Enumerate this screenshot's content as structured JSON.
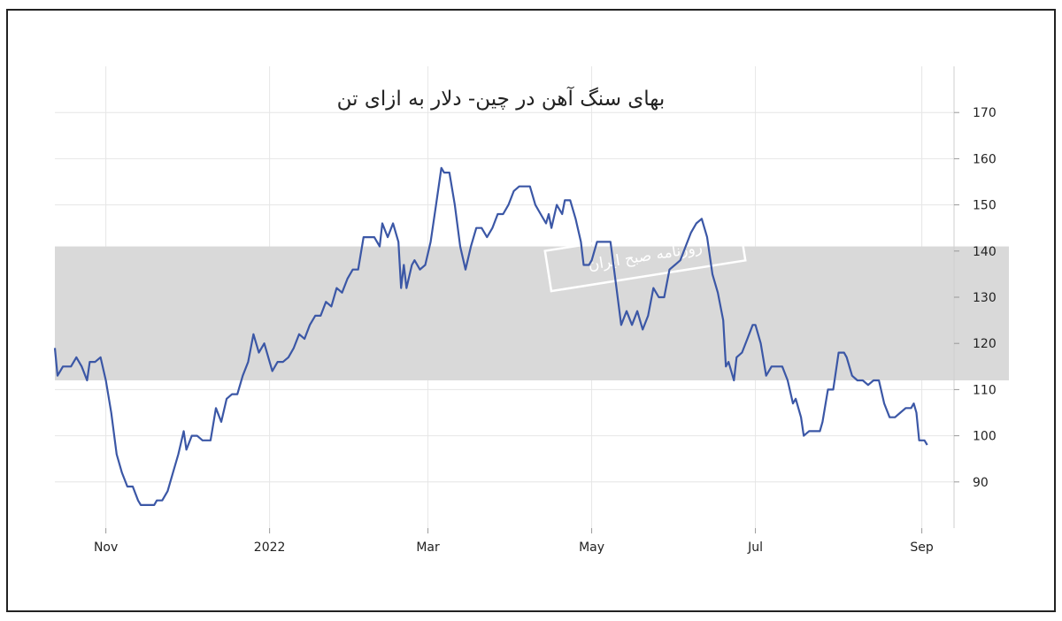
{
  "chart_data": {
    "type": "line",
    "title": "بهای سنگ آهن در چین- دلار به ازای تن",
    "xlabel": "",
    "ylabel": "",
    "ylim": [
      80,
      180
    ],
    "y_ticks": [
      90,
      100,
      110,
      120,
      130,
      140,
      150,
      160,
      170
    ],
    "x_ticks": [
      {
        "label": "Nov",
        "date": "2021-11-01"
      },
      {
        "label": "2022",
        "date": "2022-01-01"
      },
      {
        "label": "Mar",
        "date": "2022-03-01"
      },
      {
        "label": "May",
        "date": "2022-05-01"
      },
      {
        "label": "Jul",
        "date": "2022-07-01"
      },
      {
        "label": "Sep",
        "date": "2022-09-01"
      }
    ],
    "grid": true,
    "series": [
      {
        "color": "#3b57a6",
        "points": [
          [
            "2021-10-13",
            119
          ],
          [
            "2021-10-14",
            113
          ],
          [
            "2021-10-16",
            115
          ],
          [
            "2021-10-19",
            115
          ],
          [
            "2021-10-21",
            117
          ],
          [
            "2021-10-23",
            115
          ],
          [
            "2021-10-25",
            112
          ],
          [
            "2021-10-26",
            116
          ],
          [
            "2021-10-28",
            116
          ],
          [
            "2021-10-30",
            117
          ],
          [
            "2021-11-01",
            112
          ],
          [
            "2021-11-03",
            105
          ],
          [
            "2021-11-05",
            96
          ],
          [
            "2021-11-07",
            92
          ],
          [
            "2021-11-09",
            89
          ],
          [
            "2021-11-11",
            89
          ],
          [
            "2021-11-13",
            86
          ],
          [
            "2021-11-14",
            85
          ],
          [
            "2021-11-16",
            85
          ],
          [
            "2021-11-19",
            85
          ],
          [
            "2021-11-20",
            86
          ],
          [
            "2021-11-22",
            86
          ],
          [
            "2021-11-24",
            88
          ],
          [
            "2021-11-26",
            92
          ],
          [
            "2021-11-28",
            96
          ],
          [
            "2021-11-30",
            101
          ],
          [
            "2021-12-01",
            97
          ],
          [
            "2021-12-03",
            100
          ],
          [
            "2021-12-05",
            100
          ],
          [
            "2021-12-07",
            99
          ],
          [
            "2021-12-10",
            99
          ],
          [
            "2021-12-12",
            106
          ],
          [
            "2021-12-14",
            103
          ],
          [
            "2021-12-16",
            108
          ],
          [
            "2021-12-18",
            109
          ],
          [
            "2021-12-20",
            109
          ],
          [
            "2021-12-22",
            113
          ],
          [
            "2021-12-24",
            116
          ],
          [
            "2021-12-26",
            122
          ],
          [
            "2021-12-28",
            118
          ],
          [
            "2021-12-30",
            120
          ],
          [
            "2022-01-02",
            114
          ],
          [
            "2022-01-04",
            116
          ],
          [
            "2022-01-06",
            116
          ],
          [
            "2022-01-08",
            117
          ],
          [
            "2022-01-10",
            119
          ],
          [
            "2022-01-12",
            122
          ],
          [
            "2022-01-14",
            121
          ],
          [
            "2022-01-16",
            124
          ],
          [
            "2022-01-18",
            126
          ],
          [
            "2022-01-20",
            126
          ],
          [
            "2022-01-22",
            129
          ],
          [
            "2022-01-24",
            128
          ],
          [
            "2022-01-26",
            132
          ],
          [
            "2022-01-28",
            131
          ],
          [
            "2022-01-30",
            134
          ],
          [
            "2022-02-01",
            136
          ],
          [
            "2022-02-03",
            136
          ],
          [
            "2022-02-05",
            143
          ],
          [
            "2022-02-07",
            143
          ],
          [
            "2022-02-09",
            143
          ],
          [
            "2022-02-11",
            141
          ],
          [
            "2022-02-12",
            146
          ],
          [
            "2022-02-14",
            143
          ],
          [
            "2022-02-16",
            146
          ],
          [
            "2022-02-18",
            142
          ],
          [
            "2022-02-19",
            132
          ],
          [
            "2022-02-20",
            137
          ],
          [
            "2022-02-21",
            132
          ],
          [
            "2022-02-23",
            137
          ],
          [
            "2022-02-24",
            138
          ],
          [
            "2022-02-26",
            136
          ],
          [
            "2022-02-28",
            137
          ],
          [
            "2022-03-02",
            142
          ],
          [
            "2022-03-04",
            150
          ],
          [
            "2022-03-06",
            158
          ],
          [
            "2022-03-07",
            157
          ],
          [
            "2022-03-09",
            157
          ],
          [
            "2022-03-11",
            150
          ],
          [
            "2022-03-13",
            141
          ],
          [
            "2022-03-15",
            136
          ],
          [
            "2022-03-17",
            141
          ],
          [
            "2022-03-19",
            145
          ],
          [
            "2022-03-21",
            145
          ],
          [
            "2022-03-23",
            143
          ],
          [
            "2022-03-25",
            145
          ],
          [
            "2022-03-27",
            148
          ],
          [
            "2022-03-29",
            148
          ],
          [
            "2022-03-31",
            150
          ],
          [
            "2022-04-02",
            153
          ],
          [
            "2022-04-04",
            154
          ],
          [
            "2022-04-06",
            154
          ],
          [
            "2022-04-08",
            154
          ],
          [
            "2022-04-10",
            150
          ],
          [
            "2022-04-12",
            148
          ],
          [
            "2022-04-14",
            146
          ],
          [
            "2022-04-15",
            148
          ],
          [
            "2022-04-16",
            145
          ],
          [
            "2022-04-18",
            150
          ],
          [
            "2022-04-20",
            148
          ],
          [
            "2022-04-21",
            151
          ],
          [
            "2022-04-23",
            151
          ],
          [
            "2022-04-25",
            147
          ],
          [
            "2022-04-27",
            142
          ],
          [
            "2022-04-28",
            137
          ],
          [
            "2022-04-30",
            137
          ],
          [
            "2022-05-01",
            138
          ],
          [
            "2022-05-03",
            142
          ],
          [
            "2022-05-05",
            142
          ],
          [
            "2022-05-08",
            142
          ],
          [
            "2022-05-10",
            133
          ],
          [
            "2022-05-12",
            124
          ],
          [
            "2022-05-14",
            127
          ],
          [
            "2022-05-16",
            124
          ],
          [
            "2022-05-18",
            127
          ],
          [
            "2022-05-20",
            123
          ],
          [
            "2022-05-22",
            126
          ],
          [
            "2022-05-24",
            132
          ],
          [
            "2022-05-26",
            130
          ],
          [
            "2022-05-28",
            130
          ],
          [
            "2022-05-30",
            136
          ],
          [
            "2022-06-01",
            137
          ],
          [
            "2022-06-03",
            138
          ],
          [
            "2022-06-05",
            141
          ],
          [
            "2022-06-07",
            144
          ],
          [
            "2022-06-09",
            146
          ],
          [
            "2022-06-11",
            147
          ],
          [
            "2022-06-13",
            143
          ],
          [
            "2022-06-15",
            135
          ],
          [
            "2022-06-17",
            131
          ],
          [
            "2022-06-19",
            125
          ],
          [
            "2022-06-20",
            115
          ],
          [
            "2022-06-21",
            116
          ],
          [
            "2022-06-23",
            112
          ],
          [
            "2022-06-24",
            117
          ],
          [
            "2022-06-26",
            118
          ],
          [
            "2022-06-28",
            121
          ],
          [
            "2022-06-30",
            124
          ],
          [
            "2022-07-01",
            124
          ],
          [
            "2022-07-03",
            120
          ],
          [
            "2022-07-05",
            113
          ],
          [
            "2022-07-07",
            115
          ],
          [
            "2022-07-09",
            115
          ],
          [
            "2022-07-11",
            115
          ],
          [
            "2022-07-13",
            112
          ],
          [
            "2022-07-15",
            107
          ],
          [
            "2022-07-16",
            108
          ],
          [
            "2022-07-18",
            104
          ],
          [
            "2022-07-19",
            100
          ],
          [
            "2022-07-21",
            101
          ],
          [
            "2022-07-23",
            101
          ],
          [
            "2022-07-25",
            101
          ],
          [
            "2022-07-26",
            103
          ],
          [
            "2022-07-28",
            110
          ],
          [
            "2022-07-30",
            110
          ],
          [
            "2022-08-01",
            118
          ],
          [
            "2022-08-03",
            118
          ],
          [
            "2022-08-04",
            117
          ],
          [
            "2022-08-06",
            113
          ],
          [
            "2022-08-08",
            112
          ],
          [
            "2022-08-10",
            112
          ],
          [
            "2022-08-12",
            111
          ],
          [
            "2022-08-14",
            112
          ],
          [
            "2022-08-16",
            112
          ],
          [
            "2022-08-18",
            107
          ],
          [
            "2022-08-20",
            104
          ],
          [
            "2022-08-22",
            104
          ],
          [
            "2022-08-24",
            105
          ],
          [
            "2022-08-26",
            106
          ],
          [
            "2022-08-28",
            106
          ],
          [
            "2022-08-29",
            107
          ],
          [
            "2022-08-30",
            105
          ],
          [
            "2022-08-31",
            99
          ],
          [
            "2022-09-02",
            99
          ],
          [
            "2022-09-03",
            98
          ]
        ]
      }
    ]
  },
  "watermark": {
    "text": "روزنامه صبح ایران",
    "band_range": [
      112,
      141
    ],
    "band_color": "#d9d9d9"
  }
}
